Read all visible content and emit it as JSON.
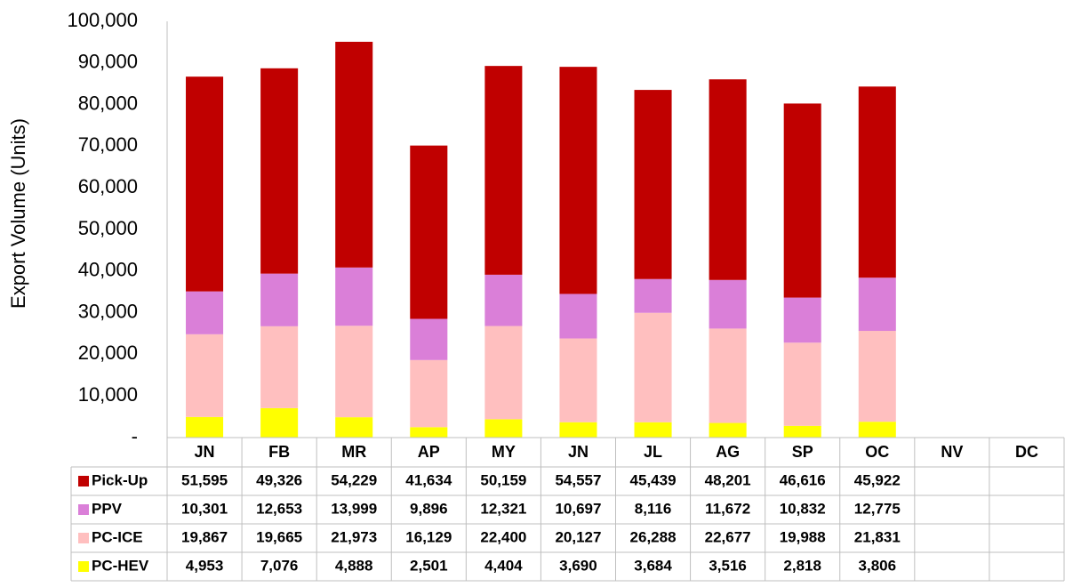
{
  "chart_data": {
    "type": "stacked_bar",
    "y_label": "Export Volume (Units)",
    "categories": [
      "JN",
      "FB",
      "MR",
      "AP",
      "MY",
      "JN",
      "JL",
      "AG",
      "SP",
      "OC",
      "NV",
      "DC"
    ],
    "series": [
      {
        "name": "Pick-Up",
        "color": "#c00000",
        "values": [
          51595,
          49326,
          54229,
          41634,
          50159,
          54557,
          45439,
          48201,
          46616,
          45922,
          null,
          null
        ],
        "value_labels": [
          "51,595",
          "49,326",
          "54,229",
          "41,634",
          "50,159",
          "54,557",
          "45,439",
          "48,201",
          "46,616",
          "45,922",
          null,
          null
        ]
      },
      {
        "name": "PPV",
        "color": "#da7fd8",
        "values": [
          10301,
          12653,
          13999,
          9896,
          12321,
          10697,
          8116,
          11672,
          10832,
          12775,
          null,
          null
        ],
        "value_labels": [
          "10,301",
          "12,653",
          "13,999",
          "9,896",
          "12,321",
          "10,697",
          "8,116",
          "11,672",
          "10,832",
          "12,775",
          null,
          null
        ]
      },
      {
        "name": "PC-ICE",
        "color": "#ffbfbf",
        "values": [
          19867,
          19665,
          21973,
          16129,
          22400,
          20127,
          26288,
          22677,
          19988,
          21831,
          null,
          null
        ],
        "value_labels": [
          "19,867",
          "19,665",
          "21,973",
          "16,129",
          "22,400",
          "20,127",
          "26,288",
          "22,677",
          "19,988",
          "21,831",
          null,
          null
        ]
      },
      {
        "name": "PC-HEV",
        "color": "#ffff00",
        "values": [
          4953,
          7076,
          4888,
          2501,
          4404,
          3690,
          3684,
          3516,
          2818,
          3806,
          null,
          null
        ],
        "value_labels": [
          "4,953",
          "7,076",
          "4,888",
          "2,501",
          "4,404",
          "3,690",
          "3,684",
          "3,516",
          "2,818",
          "3,806",
          null,
          null
        ]
      }
    ],
    "ylim": [
      0,
      100000
    ],
    "yticks": [
      {
        "value": 0,
        "label": "-"
      },
      {
        "value": 10000,
        "label": "10,000"
      },
      {
        "value": 20000,
        "label": "20,000"
      },
      {
        "value": 30000,
        "label": "30,000"
      },
      {
        "value": 40000,
        "label": "40,000"
      },
      {
        "value": 50000,
        "label": "50,000"
      },
      {
        "value": 60000,
        "label": "60,000"
      },
      {
        "value": 70000,
        "label": "70,000"
      },
      {
        "value": 80000,
        "label": "80,000"
      },
      {
        "value": 90000,
        "label": "90,000"
      },
      {
        "value": 100000,
        "label": "100,000"
      }
    ],
    "grid": false
  }
}
